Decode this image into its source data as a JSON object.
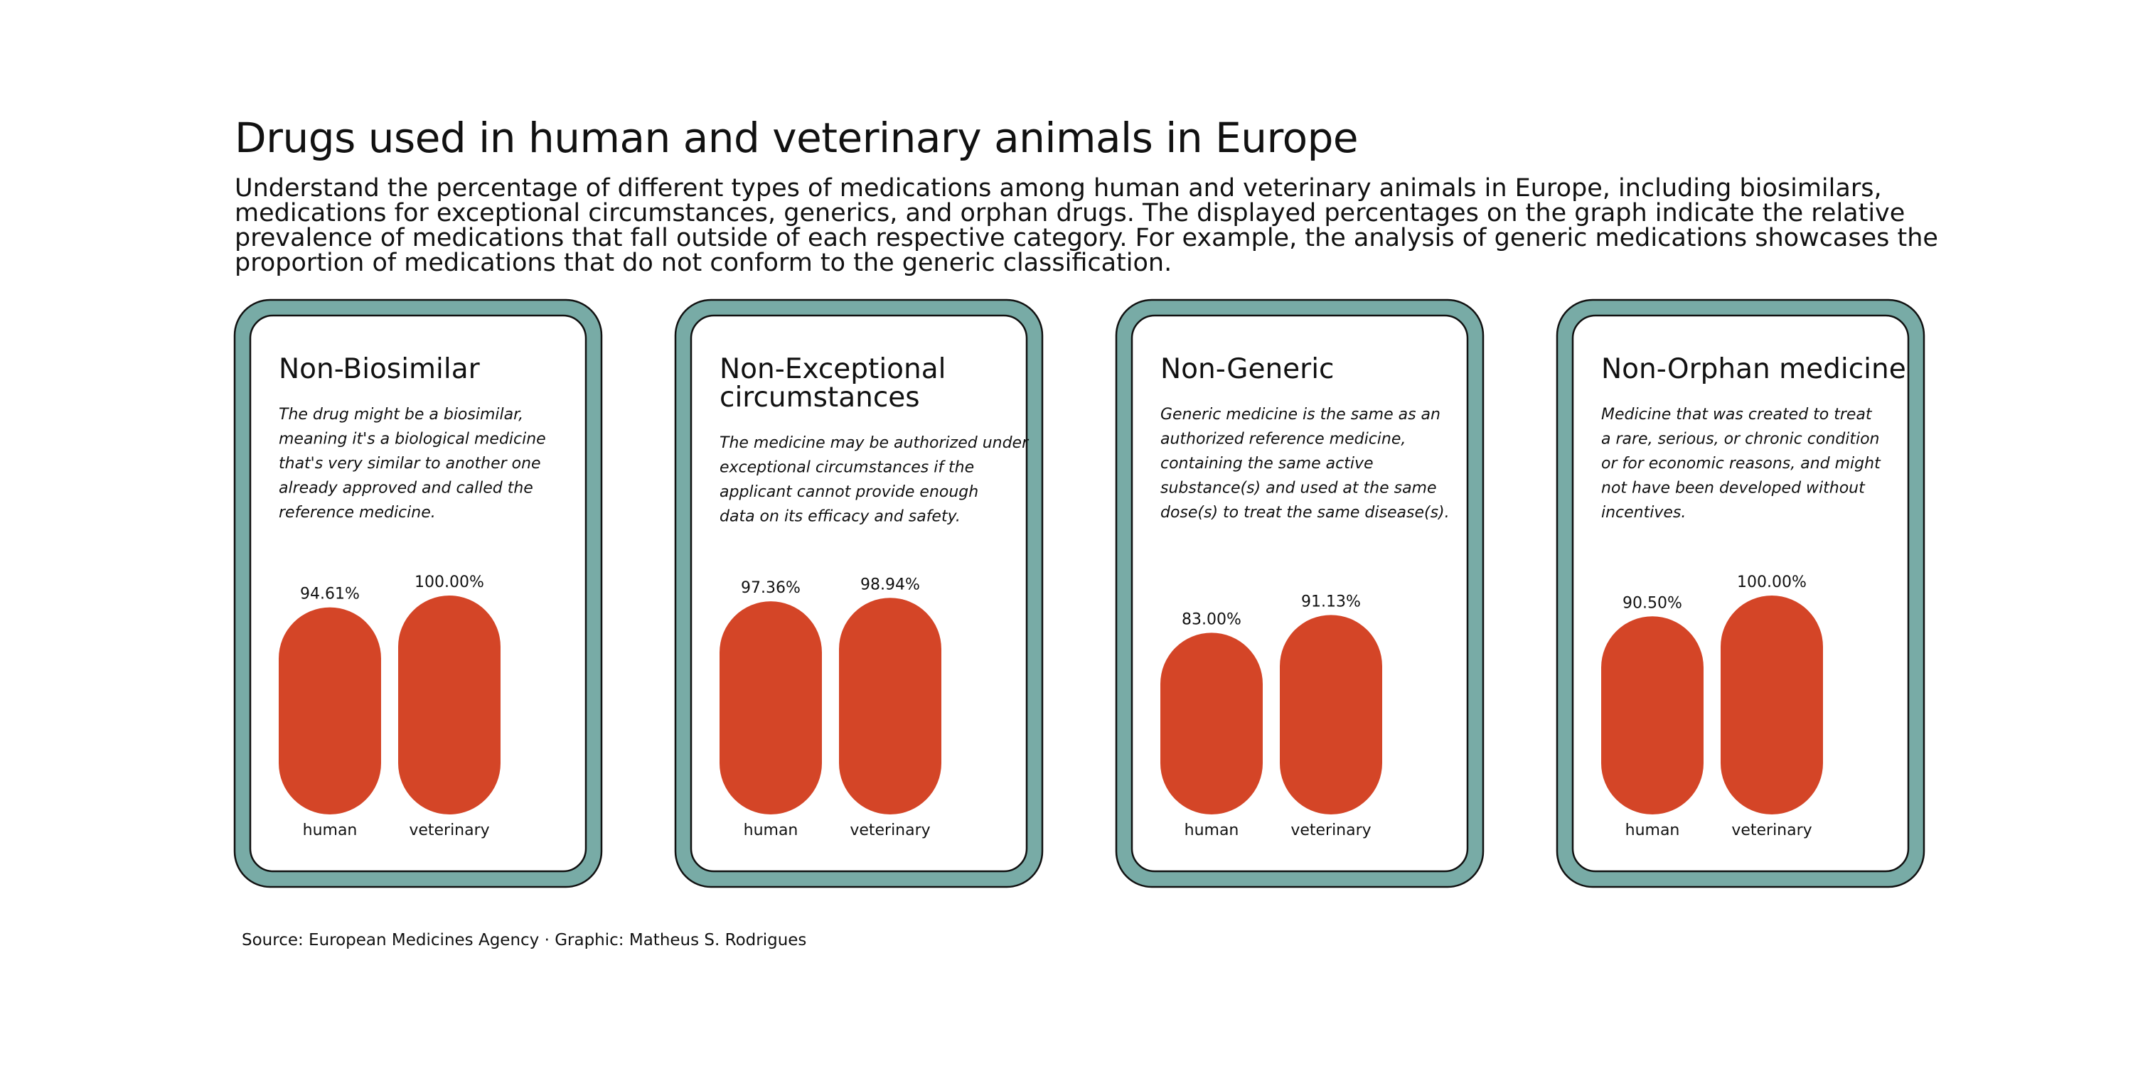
{
  "title": "Drugs used in human and veterinary animals in Europe",
  "subtitle": "Understand the percentage of different types of medications among human and veterinary animals in Europe, including biosimilars, medications for exceptional circumstances, generics, and orphan drugs. The displayed percentages on the graph indicate the relative prevalence of medications that fall outside of each respective category. For example, the analysis of generic medications showcases the proportion of medications that do not conform to the generic classification.",
  "source": "Source: European Medicines Agency · Graphic: Matheus S. Rodrigues",
  "colors": {
    "frame": "#78aba6",
    "bar": "#d44527",
    "card_bg": "#ffffff",
    "outline": "#111111"
  },
  "chart_data": [
    {
      "type": "bar",
      "title": "Non-Biosimilar",
      "description": [
        "The drug might be a biosimilar,",
        "meaning it's a biological medicine",
        "that's very similar to another one",
        "already approved and called the",
        "reference medicine."
      ],
      "categories": [
        "human",
        "veterinary"
      ],
      "values": [
        94.61,
        100.0
      ],
      "value_labels": [
        "94.61%",
        "100.00%"
      ],
      "unit": "%",
      "ylim": [
        0,
        100
      ]
    },
    {
      "type": "bar",
      "title": [
        "Non-Exceptional",
        "circumstances"
      ],
      "description": [
        "The medicine may be authorized under",
        "exceptional circumstances if the",
        "applicant cannot provide enough",
        "data on its efficacy and safety."
      ],
      "categories": [
        "human",
        "veterinary"
      ],
      "values": [
        97.36,
        98.94
      ],
      "value_labels": [
        "97.36%",
        "98.94%"
      ],
      "unit": "%",
      "ylim": [
        0,
        100
      ]
    },
    {
      "type": "bar",
      "title": "Non-Generic",
      "description": [
        "Generic medicine is the same as an",
        "authorized reference medicine,",
        "containing the same active",
        "substance(s) and used at the same",
        "dose(s) to treat the same disease(s)."
      ],
      "categories": [
        "human",
        "veterinary"
      ],
      "values": [
        83.0,
        91.13
      ],
      "value_labels": [
        "83.00%",
        "91.13%"
      ],
      "unit": "%",
      "ylim": [
        0,
        100
      ]
    },
    {
      "type": "bar",
      "title": "Non-Orphan medicine",
      "description": [
        "Medicine that was created to treat",
        "a rare, serious, or chronic condition",
        "or for economic reasons, and might",
        "not have been developed without",
        "incentives."
      ],
      "categories": [
        "human",
        "veterinary"
      ],
      "values": [
        90.5,
        100.0
      ],
      "value_labels": [
        "90.50%",
        "100.00%"
      ],
      "unit": "%",
      "ylim": [
        0,
        100
      ]
    }
  ]
}
